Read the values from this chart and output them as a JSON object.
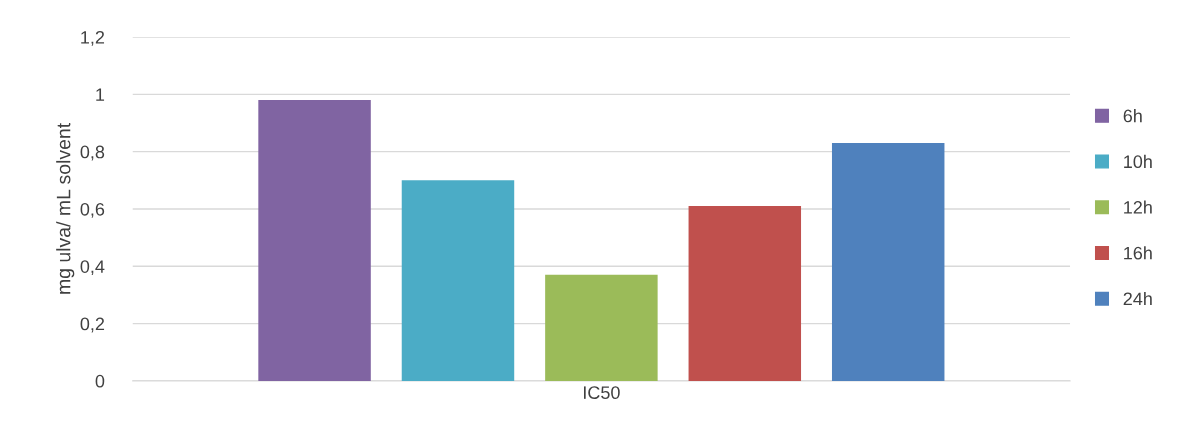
{
  "chart_data": {
    "type": "bar",
    "ylabel": "mg ulva/ mL solvent",
    "categories": [
      "IC50"
    ],
    "series": [
      {
        "name": "6h",
        "color": "#8064a2",
        "values": [
          0.98
        ]
      },
      {
        "name": "10h",
        "color": "#4bacc6",
        "values": [
          0.7
        ]
      },
      {
        "name": "12h",
        "color": "#9bbb59",
        "values": [
          0.37
        ]
      },
      {
        "name": "16h",
        "color": "#c0504d",
        "values": [
          0.61
        ]
      },
      {
        "name": "24h",
        "color": "#4f81bd",
        "values": [
          0.83
        ]
      }
    ],
    "ylim": [
      0,
      1.2
    ],
    "yticks": [
      {
        "value": 0,
        "label": "0"
      },
      {
        "value": 0.2,
        "label": "0,2"
      },
      {
        "value": 0.4,
        "label": "0,4"
      },
      {
        "value": 0.6,
        "label": "0,6"
      },
      {
        "value": 0.8,
        "label": "0,8"
      },
      {
        "value": 1,
        "label": "1"
      },
      {
        "value": 1.2,
        "label": "1,2"
      }
    ],
    "grid": "y",
    "legend": "right"
  }
}
